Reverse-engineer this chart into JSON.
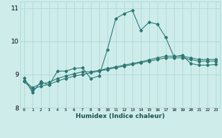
{
  "xlabel": "Humidex (Indice chaleur)",
  "background_color": "#cdecea",
  "grid_color": "#afd8d6",
  "line_color": "#2d7874",
  "xlim": [
    -0.5,
    23.5
  ],
  "ylim": [
    8.0,
    11.2
  ],
  "yticks": [
    8,
    9,
    10,
    11
  ],
  "xticks": [
    0,
    1,
    2,
    3,
    4,
    5,
    6,
    7,
    8,
    9,
    10,
    11,
    12,
    13,
    14,
    15,
    16,
    17,
    18,
    19,
    20,
    21,
    22,
    23
  ],
  "x": [
    0,
    1,
    2,
    3,
    4,
    5,
    6,
    7,
    8,
    9,
    10,
    11,
    12,
    13,
    14,
    15,
    16,
    17,
    18,
    19,
    20,
    21,
    22,
    23
  ],
  "line1": [
    8.9,
    8.45,
    8.78,
    8.68,
    9.1,
    9.1,
    9.18,
    9.2,
    8.88,
    8.95,
    9.75,
    10.68,
    10.83,
    10.93,
    10.33,
    10.57,
    10.52,
    10.12,
    9.53,
    9.58,
    9.33,
    9.28,
    9.28,
    9.3
  ],
  "line2": [
    8.82,
    8.6,
    8.72,
    8.76,
    8.88,
    8.95,
    9.02,
    9.08,
    9.08,
    9.12,
    9.18,
    9.23,
    9.28,
    9.33,
    9.38,
    9.44,
    9.5,
    9.55,
    9.55,
    9.55,
    9.5,
    9.45,
    9.45,
    9.45
  ],
  "line3": [
    8.78,
    8.55,
    8.65,
    8.7,
    8.8,
    8.88,
    8.95,
    9.0,
    9.05,
    9.1,
    9.15,
    9.2,
    9.25,
    9.3,
    9.35,
    9.4,
    9.45,
    9.5,
    9.5,
    9.5,
    9.45,
    9.4,
    9.4,
    9.4
  ]
}
